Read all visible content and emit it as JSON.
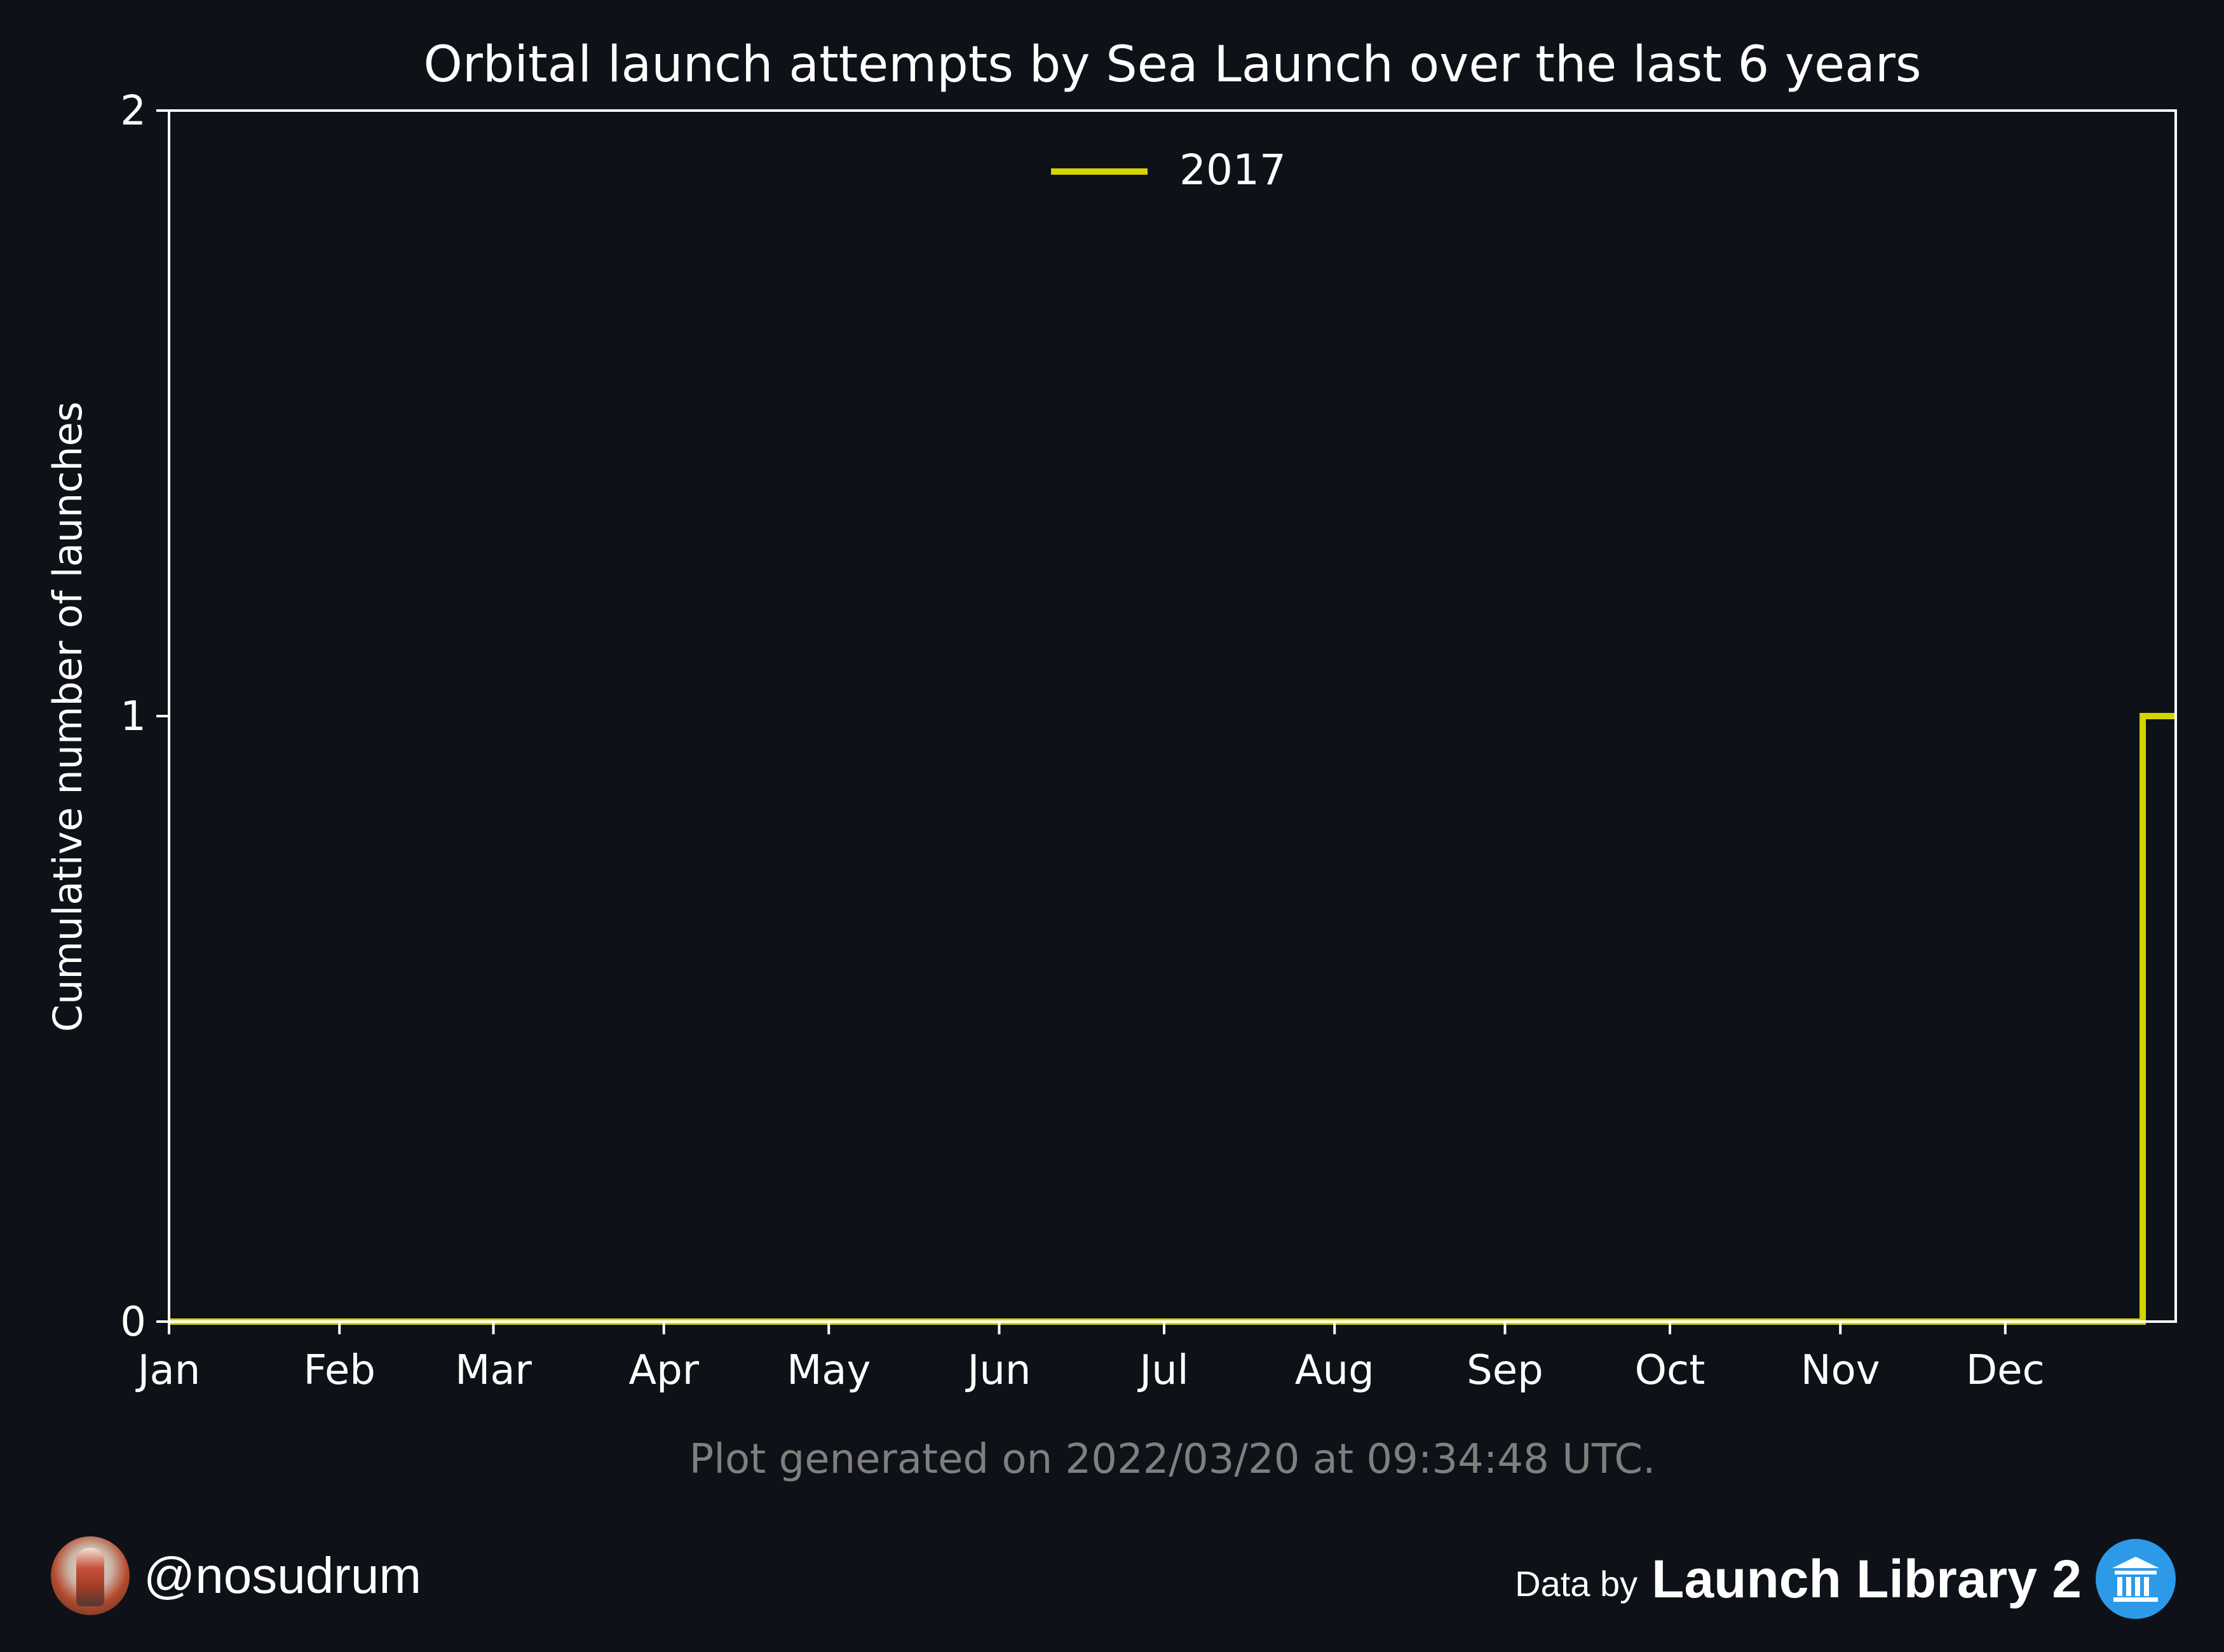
{
  "chart_data": {
    "type": "line",
    "title": "Orbital launch attempts by Sea Launch over the last 6 years",
    "xlabel": "",
    "ylabel": "Cumulative number of launches",
    "x_tick_labels": [
      "Jan",
      "Feb",
      "Mar",
      "Apr",
      "May",
      "Jun",
      "Jul",
      "Aug",
      "Sep",
      "Oct",
      "Nov",
      "Dec"
    ],
    "x_tick_days": [
      1,
      32,
      60,
      91,
      121,
      152,
      182,
      213,
      244,
      274,
      305,
      335
    ],
    "y_ticks": [
      0,
      1,
      2
    ],
    "xlim": [
      1,
      366
    ],
    "ylim": [
      0,
      2
    ],
    "grid": false,
    "legend_position": "top-center",
    "x_unit": "day of year",
    "series": [
      {
        "name": "2017",
        "color": "#d4d400",
        "step": "post",
        "points": [
          {
            "x": 1,
            "y": 0
          },
          {
            "x": 360,
            "y": 0
          },
          {
            "x": 360,
            "y": 1
          },
          {
            "x": 366,
            "y": 1
          }
        ]
      }
    ]
  },
  "caption": "Plot generated on 2022/03/20 at 09:34:48 UTC.",
  "footer": {
    "handle": "@nosudrum",
    "data_by": "Data by",
    "source": "Launch Library 2",
    "avatar_icon": "astronaut-avatar",
    "source_icon": "launch-library-logo"
  },
  "colors": {
    "background": "#0e1117",
    "axes": "#ffffff",
    "series_2017": "#d4d400",
    "caption": "#7f7f7f"
  }
}
